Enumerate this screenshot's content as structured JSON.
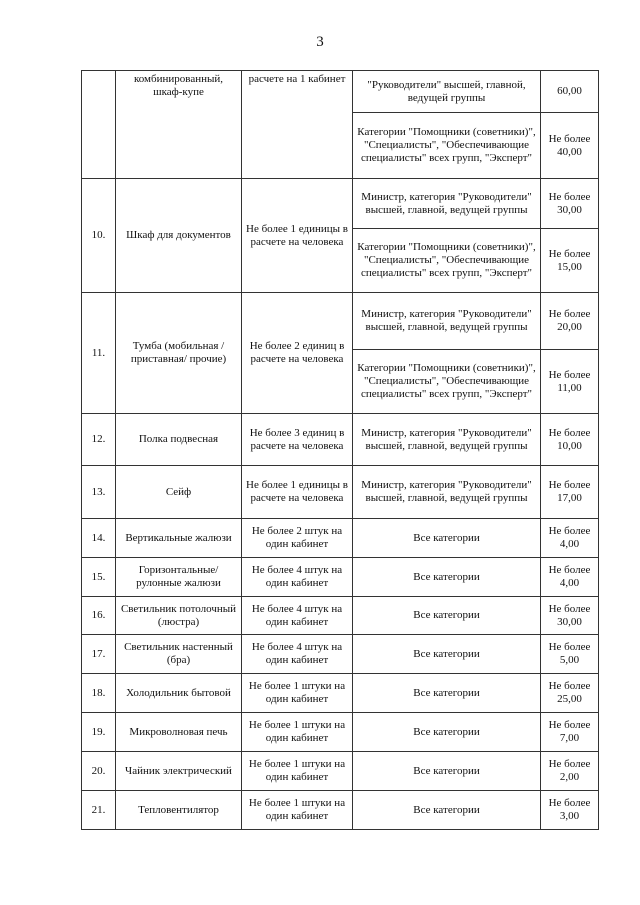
{
  "page_number": "3",
  "items": [
    {
      "num": "",
      "name": "комбинированный, шкаф-купе",
      "norm": "расчете на 1 кабинет",
      "continued": true,
      "subs": [
        {
          "category": "\"Руководители\" высшей, главной, ведущей группы",
          "price": "60,00"
        },
        {
          "category": "Категории \"Помощники (советники)\", \"Специалисты\", \"Обеспечивающие специалисты\" всех групп, \"Эксперт\"",
          "price": "Не более 40,00"
        }
      ]
    },
    {
      "num": "10.",
      "name": "Шкаф для документов",
      "norm": "Не более 1 единицы в расчете на человека",
      "subs": [
        {
          "category": "Министр, категория \"Руководители\" высшей, главной, ведущей группы",
          "price": "Не более 30,00"
        },
        {
          "category": "Категории \"Помощники (советники)\", \"Специалисты\", \"Обеспечивающие специалисты\" всех групп, \"Эксперт\"",
          "price": "Не более 15,00"
        }
      ]
    },
    {
      "num": "11.",
      "name": "Тумба (мобильная /приставная/ прочие)",
      "norm": "Не более 2 единиц в расчете на человека",
      "subs": [
        {
          "category": "Министр, категория \"Руководители\" высшей, главной, ведущей группы",
          "price": "Не более 20,00"
        },
        {
          "category": "Категории \"Помощники (советники)\", \"Специалисты\", \"Обеспечивающие специалисты\" всех групп, \"Эксперт\"",
          "price": "Не более 11,00"
        }
      ]
    },
    {
      "num": "12.",
      "name": "Полка подвесная",
      "norm": "Не более 3 единиц в расчете на человека",
      "subs": [
        {
          "category": "Министр, категория \"Руководители\" высшей, главной, ведущей группы",
          "price": "Не более 10,00"
        }
      ]
    },
    {
      "num": "13.",
      "name": "Сейф",
      "norm": "Не более 1 единицы в расчете на человека",
      "subs": [
        {
          "category": "Министр, категория \"Руководители\" высшей, главной, ведущей группы",
          "price": "Не более 17,00"
        }
      ]
    },
    {
      "num": "14.",
      "name": "Вертикальные жалюзи",
      "norm": "Не более 2 штук на один кабинет",
      "subs": [
        {
          "category": "Все категории",
          "price": "Не более 4,00"
        }
      ]
    },
    {
      "num": "15.",
      "name": "Горизонтальные/ рулонные жалюзи",
      "norm": "Не более 4 штук на один кабинет",
      "subs": [
        {
          "category": "Все категории",
          "price": "Не более 4,00"
        }
      ]
    },
    {
      "num": "16.",
      "name": "Светильник потолочный (люстра)",
      "norm": "Не более 4 штук на один кабинет",
      "subs": [
        {
          "category": "Все категории",
          "price": "Не более 30,00"
        }
      ]
    },
    {
      "num": "17.",
      "name": "Светильник настенный (бра)",
      "norm": "Не более 4 штук на один кабинет",
      "subs": [
        {
          "category": "Все категории",
          "price": "Не более 5,00"
        }
      ]
    },
    {
      "num": "18.",
      "name": "Холодильник бытовой",
      "norm": "Не более 1 штуки на один кабинет",
      "subs": [
        {
          "category": "Все категории",
          "price": "Не более 25,00"
        }
      ]
    },
    {
      "num": "19.",
      "name": "Микроволновая печь",
      "norm": "Не более 1 штуки на один кабинет",
      "subs": [
        {
          "category": "Все категории",
          "price": "Не более 7,00"
        }
      ]
    },
    {
      "num": "20.",
      "name": "Чайник электрический",
      "norm": "Не более 1 штуки на один кабинет",
      "subs": [
        {
          "category": "Все категории",
          "price": "Не более 2,00"
        }
      ]
    },
    {
      "num": "21.",
      "name": "Тепловентилятор",
      "norm": "Не более 1 штуки на один кабинет",
      "subs": [
        {
          "category": "Все категории",
          "price": "Не более 3,00"
        }
      ]
    }
  ]
}
